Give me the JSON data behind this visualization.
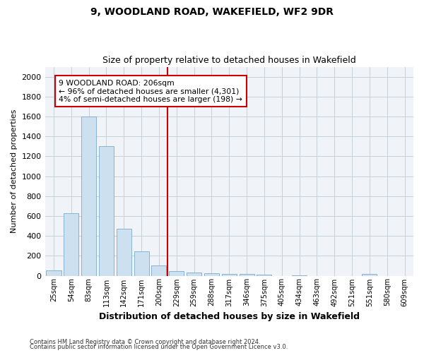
{
  "title1": "9, WOODLAND ROAD, WAKEFIELD, WF2 9DR",
  "title2": "Size of property relative to detached houses in Wakefield",
  "xlabel": "Distribution of detached houses by size in Wakefield",
  "ylabel": "Number of detached properties",
  "categories": [
    "25sqm",
    "54sqm",
    "83sqm",
    "113sqm",
    "142sqm",
    "171sqm",
    "200sqm",
    "229sqm",
    "259sqm",
    "288sqm",
    "317sqm",
    "346sqm",
    "375sqm",
    "405sqm",
    "434sqm",
    "463sqm",
    "492sqm",
    "521sqm",
    "551sqm",
    "580sqm",
    "609sqm"
  ],
  "bar_values": [
    50,
    625,
    1600,
    1300,
    475,
    245,
    100,
    45,
    30,
    25,
    20,
    15,
    10,
    0,
    5,
    0,
    0,
    0,
    20,
    0,
    0
  ],
  "bar_color": "#cce0f0",
  "bar_edge_color": "#7aaac8",
  "grid_color": "#c8d0d8",
  "vline_x": 6.5,
  "vline_color": "#cc0000",
  "annotation_text": "9 WOODLAND ROAD: 206sqm\n← 96% of detached houses are smaller (4,301)\n4% of semi-detached houses are larger (198) →",
  "annotation_box_color": "#ffffff",
  "annotation_box_edge": "#cc0000",
  "ylim": [
    0,
    2100
  ],
  "yticks": [
    0,
    200,
    400,
    600,
    800,
    1000,
    1200,
    1400,
    1600,
    1800,
    2000
  ],
  "footnote1": "Contains HM Land Registry data © Crown copyright and database right 2024.",
  "footnote2": "Contains public sector information licensed under the Open Government Licence v3.0.",
  "bg_color": "#ffffff",
  "plot_bg_color": "#f0f4f8"
}
